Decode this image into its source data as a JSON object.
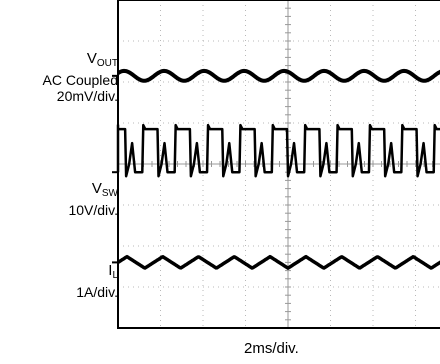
{
  "chart_data": {
    "type": "line",
    "xlabel": "2ms/div.",
    "grid": true,
    "divisions": {
      "x": 8,
      "y": 8
    },
    "trace_color": "#000000",
    "traces": [
      {
        "id": "vout",
        "label_main": "V",
        "label_sub": "OUT",
        "label_line2": "AC Coupled",
        "label_line3": "20mV/div.",
        "waveform": "sine",
        "cycles": 8.5,
        "amplitude_div": 0.12,
        "baseline_div": 1.85
      },
      {
        "id": "vsw",
        "label_main": "V",
        "label_sub": "SW",
        "label_line2": "10V/div.",
        "waveform": "pulse",
        "cycles": 10.5,
        "high_div": 3.15,
        "low_div": 4.2
      },
      {
        "id": "il",
        "label_main": "I",
        "label_sub": "L",
        "label_line2": "1A/div.",
        "waveform": "triangle",
        "cycles": 9.5,
        "amplitude_div": 0.14,
        "baseline_div": 6.4
      }
    ]
  }
}
